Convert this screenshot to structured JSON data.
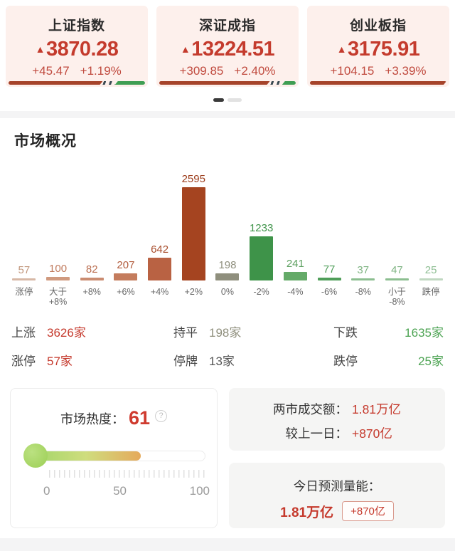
{
  "icons": {
    "up_arrow": "▲",
    "help_question": "?"
  },
  "colors": {
    "accent_red": "#c43b2d",
    "card_bg": "#fdf0ec",
    "ratio_red": "#a6432a",
    "ratio_green": "#3f9e53"
  },
  "indices": [
    {
      "name": "上证指数",
      "price": "3870.28",
      "change": "+45.47",
      "pct": "+1.19%",
      "ratio": {
        "red": 69,
        "stripe": 9,
        "green": 22
      }
    },
    {
      "name": "深证成指",
      "price": "13224.51",
      "change": "+309.85",
      "pct": "+2.40%",
      "ratio": {
        "red": 81,
        "stripe": 9,
        "green": 10
      }
    },
    {
      "name": "创业板指",
      "price": "3175.91",
      "change": "+104.15",
      "pct": "+3.39%",
      "ratio": {
        "red": 100,
        "stripe": 0,
        "green": 0
      }
    }
  ],
  "pager": {
    "count": 2,
    "active_index": 0
  },
  "section_title": "市场概况",
  "chart_data": {
    "type": "bar",
    "title": "市场概况",
    "categories": [
      "涨停",
      "大于\n+8%",
      "+8%",
      "+6%",
      "+4%",
      "+2%",
      "0%",
      "-2%",
      "-4%",
      "-6%",
      "-8%",
      "小于\n-8%",
      "跌停"
    ],
    "values": [
      57,
      100,
      82,
      207,
      642,
      2595,
      198,
      1233,
      241,
      77,
      37,
      47,
      25
    ],
    "bar_colors": [
      "#d7b8a6",
      "#d09a7f",
      "#ca8c71",
      "#c47c5d",
      "#b96243",
      "#a54420",
      "#8f8f7d",
      "#3e9349",
      "#64aa68",
      "#4f9e59",
      "#8cbe90",
      "#8cbe90",
      "#c0d8c1"
    ],
    "label_colors": [
      "#c2987e",
      "#c07a5c",
      "#ba6e50",
      "#b25c3d",
      "#a84e2d",
      "#9c3d1c",
      "#8f8f7d",
      "#3e9349",
      "#5ea161",
      "#4f9e59",
      "#7fb483",
      "#7fb483",
      "#8fbf94"
    ],
    "ylim": [
      0,
      2595
    ],
    "grid": false,
    "legend": false
  },
  "stats": {
    "rows": [
      [
        {
          "label": "上涨",
          "value": "3626家",
          "color": "#c5392c"
        },
        {
          "label": "持平",
          "value": "198家",
          "color": "#8f8f7d"
        },
        {
          "label": "下跌",
          "value": "1635家",
          "color": "#4ca352"
        }
      ],
      [
        {
          "label": "涨停",
          "value": "57家",
          "color": "#c5392c"
        },
        {
          "label": "停牌",
          "value": "13家",
          "color": "#555555"
        },
        {
          "label": "跌停",
          "value": "25家",
          "color": "#4ca352"
        }
      ]
    ]
  },
  "heat": {
    "label": "市场热度：",
    "value": "61",
    "percent": 61,
    "scale": [
      "0",
      "50",
      "100"
    ]
  },
  "turnover": {
    "rows": [
      {
        "label": "两市成交额：",
        "value": "1.81万亿"
      },
      {
        "label": "较上一日：",
        "value": "+870亿"
      }
    ]
  },
  "forecast": {
    "title": "今日预测量能：",
    "value": "1.81万亿",
    "badge": "+870亿"
  }
}
